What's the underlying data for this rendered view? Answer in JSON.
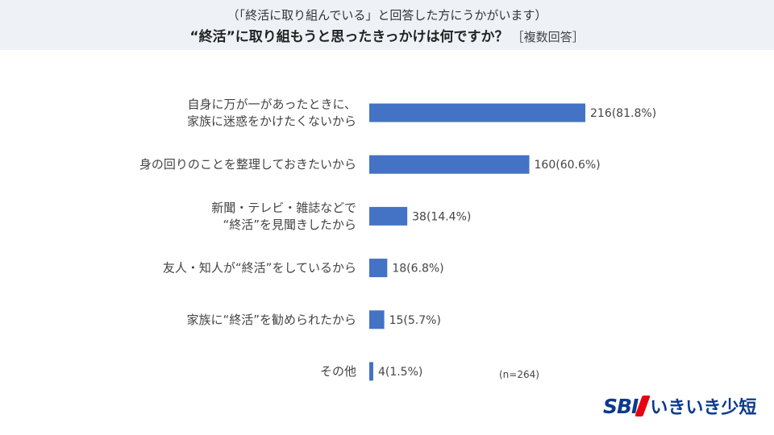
{
  "header": {
    "subtitle": "（「終活に取り組んでいる」と回答した方にうかがいます）",
    "title": "“終活”に取り組もうと思ったきっかけは何ですか？",
    "title_note": "［複数回答］"
  },
  "sample_note": "(n=264)",
  "logo": {
    "mark": "SBI",
    "name": "いきいき少短"
  },
  "colors": {
    "bar": "#4472c4",
    "header_bg": "#eef2f7",
    "brand_blue": "#0d3a8c",
    "brand_red": "#e60012"
  },
  "chart_data": {
    "type": "bar",
    "orientation": "horizontal",
    "categories": [
      [
        "自身に万が一があったときに、",
        "家族に迷惑をかけたくないから"
      ],
      [
        "身の回りのことを整理しておきたいから"
      ],
      [
        "新聞・テレビ・雑誌などで",
        "“終活”を見聞きしたから"
      ],
      [
        "友人・知人が“終活”をしているから"
      ],
      [
        "家族に“終活”を勧められたから"
      ],
      [
        "その他"
      ]
    ],
    "values": [
      216,
      160,
      38,
      18,
      15,
      4
    ],
    "percents": [
      81.8,
      60.6,
      14.4,
      6.8,
      5.7,
      1.5
    ],
    "data_labels": [
      "216(81.8%)",
      "160(60.6%)",
      "38(14.4%)",
      "18(6.8%)",
      "15(5.7%)",
      "4(1.5%)"
    ],
    "n": 264,
    "grid": false,
    "legend": "none"
  }
}
